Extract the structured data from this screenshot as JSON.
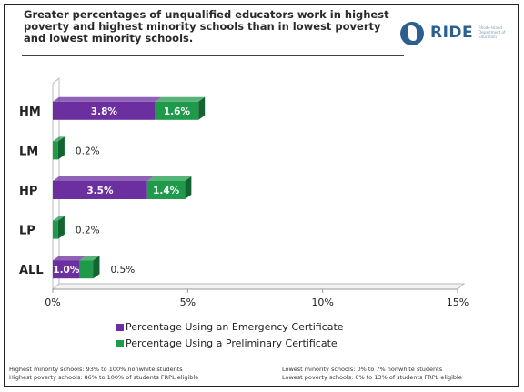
{
  "title": "Greater percentages of unqualified educators work in highest poverty and highest minority schools than in lowest poverty and lowest minority schools.",
  "logo": {
    "name": "RIDE",
    "subtitle": "Rhode Island Department of Education",
    "icon": "rhode-island-state-icon"
  },
  "colors": {
    "emergency": "#6b2fa0",
    "preliminary": "#1f9a4b",
    "axis": "#999999"
  },
  "chart_data": {
    "type": "bar",
    "orientation": "horizontal",
    "stacked": true,
    "categories": [
      "HM",
      "LM",
      "HP",
      "LP",
      "ALL"
    ],
    "series": [
      {
        "name": "Percentage Using an Emergency Certificate",
        "values": [
          3.8,
          0.0,
          3.5,
          0.0,
          1.0
        ],
        "labels": [
          "3.8%",
          "",
          "3.5%",
          "",
          "1.0%"
        ]
      },
      {
        "name": "Percentage Using a Preliminary Certificate",
        "values": [
          1.6,
          0.2,
          1.4,
          0.2,
          0.5
        ],
        "labels": [
          "1.6%",
          "0.2%",
          "1.4%",
          "0.2%",
          "0.5%"
        ]
      }
    ],
    "xlim": [
      0,
      15
    ],
    "xticks": [
      0,
      5,
      10,
      15
    ],
    "xtick_labels": [
      "0%",
      "5%",
      "10%",
      "15%"
    ],
    "legend_position": "bottom",
    "grid": false
  },
  "legend": [
    {
      "label": "Percentage Using an Emergency Certificate"
    },
    {
      "label": "Percentage Using a Preliminary Certificate"
    }
  ],
  "footnotes": {
    "left": [
      "Highest minority schools: 93% to 100% nonwhite students",
      "Highest poverty schools: 86% to 100% of students FRPL eligible"
    ],
    "right": [
      "Lowest minority schools: 0% to 7% nonwhite students",
      "Lowest poverty schools: 0% to 13% of students FRPL eligible"
    ]
  }
}
